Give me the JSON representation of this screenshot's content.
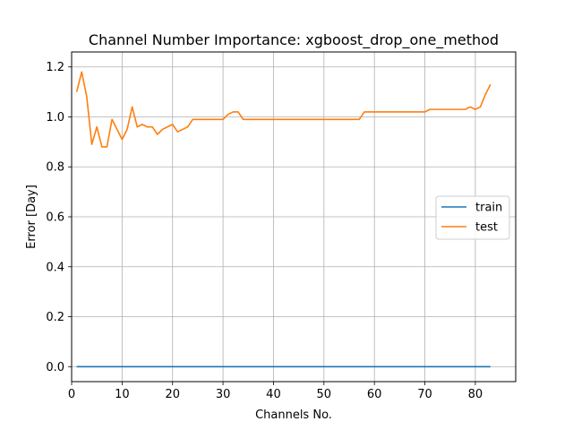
{
  "chart_data": {
    "type": "line",
    "title": "Channel Number Importance: xgboost_drop_one_method",
    "xlabel": "Channels No.",
    "ylabel": "Error [Day]",
    "xlim": [
      0,
      88
    ],
    "ylim": [
      -0.06,
      1.26
    ],
    "xticks": [
      0,
      10,
      20,
      30,
      40,
      50,
      60,
      70,
      80
    ],
    "yticks": [
      0.0,
      0.2,
      0.4,
      0.6,
      0.8,
      1.0,
      1.2
    ],
    "ytick_labels": [
      "0.0",
      "0.2",
      "0.4",
      "0.6",
      "0.8",
      "1.0",
      "1.2"
    ],
    "grid": true,
    "legend_position": "center-right",
    "series": [
      {
        "name": "train",
        "color": "#1f77b4",
        "x": [
          1,
          83
        ],
        "y": [
          0.0,
          0.0
        ]
      },
      {
        "name": "test",
        "color": "#ff7f0e",
        "x": [
          1,
          2,
          3,
          4,
          5,
          6,
          7,
          8,
          9,
          10,
          11,
          12,
          13,
          14,
          15,
          16,
          17,
          18,
          19,
          20,
          21,
          22,
          23,
          24,
          25,
          26,
          27,
          28,
          29,
          30,
          31,
          32,
          33,
          34,
          35,
          36,
          37,
          38,
          39,
          40,
          41,
          42,
          43,
          44,
          45,
          46,
          47,
          48,
          49,
          50,
          51,
          52,
          53,
          54,
          55,
          56,
          57,
          58,
          59,
          60,
          61,
          62,
          63,
          64,
          65,
          66,
          67,
          68,
          69,
          70,
          71,
          72,
          73,
          74,
          75,
          76,
          77,
          78,
          79,
          80,
          81,
          82,
          83
        ],
        "y": [
          1.1,
          1.18,
          1.08,
          0.89,
          0.96,
          0.88,
          0.88,
          0.99,
          0.95,
          0.91,
          0.95,
          1.04,
          0.96,
          0.97,
          0.96,
          0.96,
          0.93,
          0.95,
          0.96,
          0.97,
          0.94,
          0.95,
          0.96,
          0.99,
          0.99,
          0.99,
          0.99,
          0.99,
          0.99,
          0.99,
          1.01,
          1.02,
          1.02,
          0.99,
          0.99,
          0.99,
          0.99,
          0.99,
          0.99,
          0.99,
          0.99,
          0.99,
          0.99,
          0.99,
          0.99,
          0.99,
          0.99,
          0.99,
          0.99,
          0.99,
          0.99,
          0.99,
          0.99,
          0.99,
          0.99,
          0.99,
          0.99,
          1.02,
          1.02,
          1.02,
          1.02,
          1.02,
          1.02,
          1.02,
          1.02,
          1.02,
          1.02,
          1.02,
          1.02,
          1.02,
          1.03,
          1.03,
          1.03,
          1.03,
          1.03,
          1.03,
          1.03,
          1.03,
          1.04,
          1.03,
          1.04,
          1.09,
          1.13
        ]
      }
    ]
  }
}
